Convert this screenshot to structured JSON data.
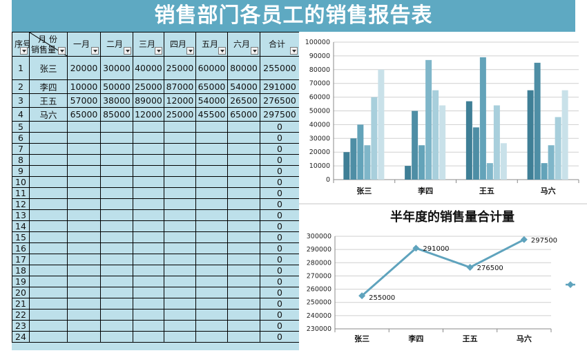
{
  "title": "销售部门各员工的销售报告表",
  "table": {
    "headers": {
      "seq": "序号",
      "diag_top": "月 份",
      "diag_bottom": "销售量",
      "months": [
        "一月",
        "二月",
        "三月",
        "四月",
        "五月",
        "六月"
      ],
      "total": "合计"
    },
    "rows": [
      {
        "seq": "1",
        "name": "张三",
        "values": [
          "20000",
          "30000",
          "40000",
          "25000",
          "60000",
          "80000"
        ],
        "total": "255000"
      },
      {
        "seq": "2",
        "name": "李四",
        "values": [
          "10000",
          "50000",
          "25000",
          "87000",
          "65000",
          "54000"
        ],
        "total": "291000"
      },
      {
        "seq": "3",
        "name": "王五",
        "values": [
          "57000",
          "38000",
          "89000",
          "12000",
          "54000",
          "26500"
        ],
        "total": "276500"
      },
      {
        "seq": "4",
        "name": "马六",
        "values": [
          "65000",
          "85000",
          "12000",
          "25000",
          "45500",
          "65000"
        ],
        "total": "297500"
      }
    ],
    "empty_rows": [
      "5",
      "6",
      "7",
      "8",
      "9",
      "10",
      "11",
      "12",
      "13",
      "14",
      "15",
      "16",
      "17",
      "18",
      "19",
      "20",
      "21",
      "22",
      "23",
      "24"
    ],
    "empty_total": "0"
  },
  "chart_data": [
    {
      "type": "bar",
      "categories": [
        "张三",
        "李四",
        "王五",
        "马六"
      ],
      "series": [
        {
          "values": [
            20000,
            10000,
            57000,
            65000
          ],
          "color": "#3f7f96"
        },
        {
          "values": [
            30000,
            50000,
            38000,
            85000
          ],
          "color": "#4e8ea5"
        },
        {
          "values": [
            40000,
            25000,
            89000,
            12000
          ],
          "color": "#63a3b9"
        },
        {
          "values": [
            25000,
            87000,
            12000,
            25000
          ],
          "color": "#7fb6c9"
        },
        {
          "values": [
            60000,
            65000,
            54000,
            45500
          ],
          "color": "#a8cfdc"
        },
        {
          "values": [
            80000,
            54000,
            26500,
            65000
          ],
          "color": "#c9e1e9"
        }
      ],
      "ylim": [
        0,
        100000
      ],
      "yticks": [
        "0",
        "10000",
        "20000",
        "30000",
        "40000",
        "50000",
        "60000",
        "70000",
        "80000",
        "90000",
        "100000"
      ],
      "grid": true
    },
    {
      "type": "line",
      "title": "半年度的销售量合计量",
      "categories": [
        "张三",
        "李四",
        "王五",
        "马六"
      ],
      "values": [
        255000,
        291000,
        276500,
        297500
      ],
      "labels": [
        "255000",
        "291000",
        "276500",
        "297500"
      ],
      "ylim": [
        230000,
        300000
      ],
      "yticks": [
        "230000",
        "240000",
        "250000",
        "260000",
        "270000",
        "280000",
        "290000",
        "300000"
      ],
      "color": "#5fa3bd",
      "grid": true
    }
  ]
}
